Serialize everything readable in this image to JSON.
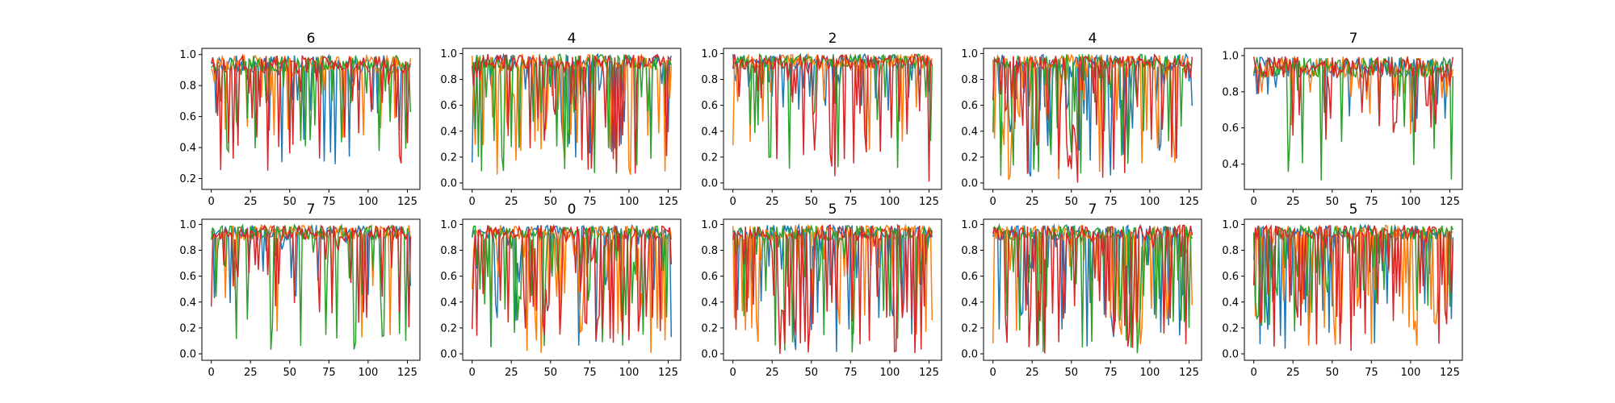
{
  "chart_data": {
    "type": "line",
    "layout": "2x5 grid of line plots",
    "series_colors": [
      "#1f77b4",
      "#ff7f0e",
      "#2ca02c",
      "#d62728"
    ],
    "x_ticks": [
      0,
      25,
      50,
      75,
      100,
      125
    ],
    "panels": [
      {
        "title": "6",
        "xlim": [
          -6,
          133
        ],
        "ylim": [
          0.13,
          1.04
        ],
        "yticks": [
          "0.2",
          "0.4",
          "0.6",
          "0.8",
          "1.0"
        ],
        "seed": 11,
        "dip_prob": [
          0.15,
          0.12,
          0.22,
          0.28
        ],
        "dip_min": [
          0.25,
          0.45,
          0.35,
          0.25
        ]
      },
      {
        "title": "4",
        "xlim": [
          -6,
          133
        ],
        "ylim": [
          -0.05,
          1.04
        ],
        "yticks": [
          "0.0",
          "0.2",
          "0.4",
          "0.6",
          "0.8",
          "1.0"
        ],
        "seed": 23,
        "dip_prob": [
          0.25,
          0.35,
          0.3,
          0.3
        ],
        "dip_min": [
          0.1,
          0.0,
          0.05,
          0.05
        ]
      },
      {
        "title": "2",
        "xlim": [
          -6,
          133
        ],
        "ylim": [
          -0.05,
          1.04
        ],
        "yticks": [
          "0.0",
          "0.2",
          "0.4",
          "0.6",
          "0.8",
          "1.0"
        ],
        "seed": 37,
        "dip_prob": [
          0.2,
          0.12,
          0.15,
          0.22
        ],
        "dip_min": [
          0.55,
          0.2,
          0.1,
          0.0
        ]
      },
      {
        "title": "4",
        "xlim": [
          -6,
          133
        ],
        "ylim": [
          -0.05,
          1.04
        ],
        "yticks": [
          "0.0",
          "0.2",
          "0.4",
          "0.6",
          "0.8",
          "1.0"
        ],
        "seed": 41,
        "dip_prob": [
          0.3,
          0.3,
          0.3,
          0.35
        ],
        "dip_min": [
          0.05,
          0.0,
          0.05,
          0.0
        ]
      },
      {
        "title": "7",
        "xlim": [
          -6,
          133
        ],
        "ylim": [
          0.26,
          1.04
        ],
        "yticks": [
          "0.4",
          "0.6",
          "0.8",
          "1.0"
        ],
        "seed": 53,
        "dip_prob": [
          0.1,
          0.15,
          0.08,
          0.2
        ],
        "dip_min": [
          0.6,
          0.55,
          0.3,
          0.52
        ]
      },
      {
        "title": "7",
        "xlim": [
          -6,
          133
        ],
        "ylim": [
          -0.05,
          1.04
        ],
        "yticks": [
          "0.0",
          "0.2",
          "0.4",
          "0.6",
          "0.8",
          "1.0"
        ],
        "seed": 61,
        "dip_prob": [
          0.2,
          0.12,
          0.25,
          0.25
        ],
        "dip_min": [
          0.3,
          0.1,
          0.0,
          0.2
        ]
      },
      {
        "title": "0",
        "xlim": [
          -6,
          133
        ],
        "ylim": [
          -0.05,
          1.04
        ],
        "yticks": [
          "0.0",
          "0.2",
          "0.4",
          "0.6",
          "0.8",
          "1.0"
        ],
        "seed": 71,
        "dip_prob": [
          0.25,
          0.4,
          0.3,
          0.3
        ],
        "dip_min": [
          0.05,
          0.0,
          0.05,
          0.05
        ]
      },
      {
        "title": "5",
        "xlim": [
          -6,
          133
        ],
        "ylim": [
          -0.05,
          1.04
        ],
        "yticks": [
          "0.0",
          "0.2",
          "0.4",
          "0.6",
          "0.8",
          "1.0"
        ],
        "seed": 83,
        "dip_prob": [
          0.3,
          0.3,
          0.3,
          0.35
        ],
        "dip_min": [
          0.0,
          0.05,
          0.0,
          0.0
        ]
      },
      {
        "title": "7",
        "xlim": [
          -6,
          133
        ],
        "ylim": [
          -0.05,
          1.04
        ],
        "yticks": [
          "0.0",
          "0.2",
          "0.4",
          "0.6",
          "0.8",
          "1.0"
        ],
        "seed": 97,
        "dip_prob": [
          0.3,
          0.3,
          0.3,
          0.35
        ],
        "dip_min": [
          0.0,
          0.05,
          0.0,
          0.0
        ]
      },
      {
        "title": "5",
        "xlim": [
          -6,
          133
        ],
        "ylim": [
          -0.05,
          1.04
        ],
        "yticks": [
          "0.0",
          "0.2",
          "0.4",
          "0.6",
          "0.8",
          "1.0"
        ],
        "seed": 101,
        "dip_prob": [
          0.25,
          0.3,
          0.3,
          0.3
        ],
        "dip_min": [
          0.0,
          0.05,
          0.15,
          0.0
        ]
      }
    ]
  }
}
